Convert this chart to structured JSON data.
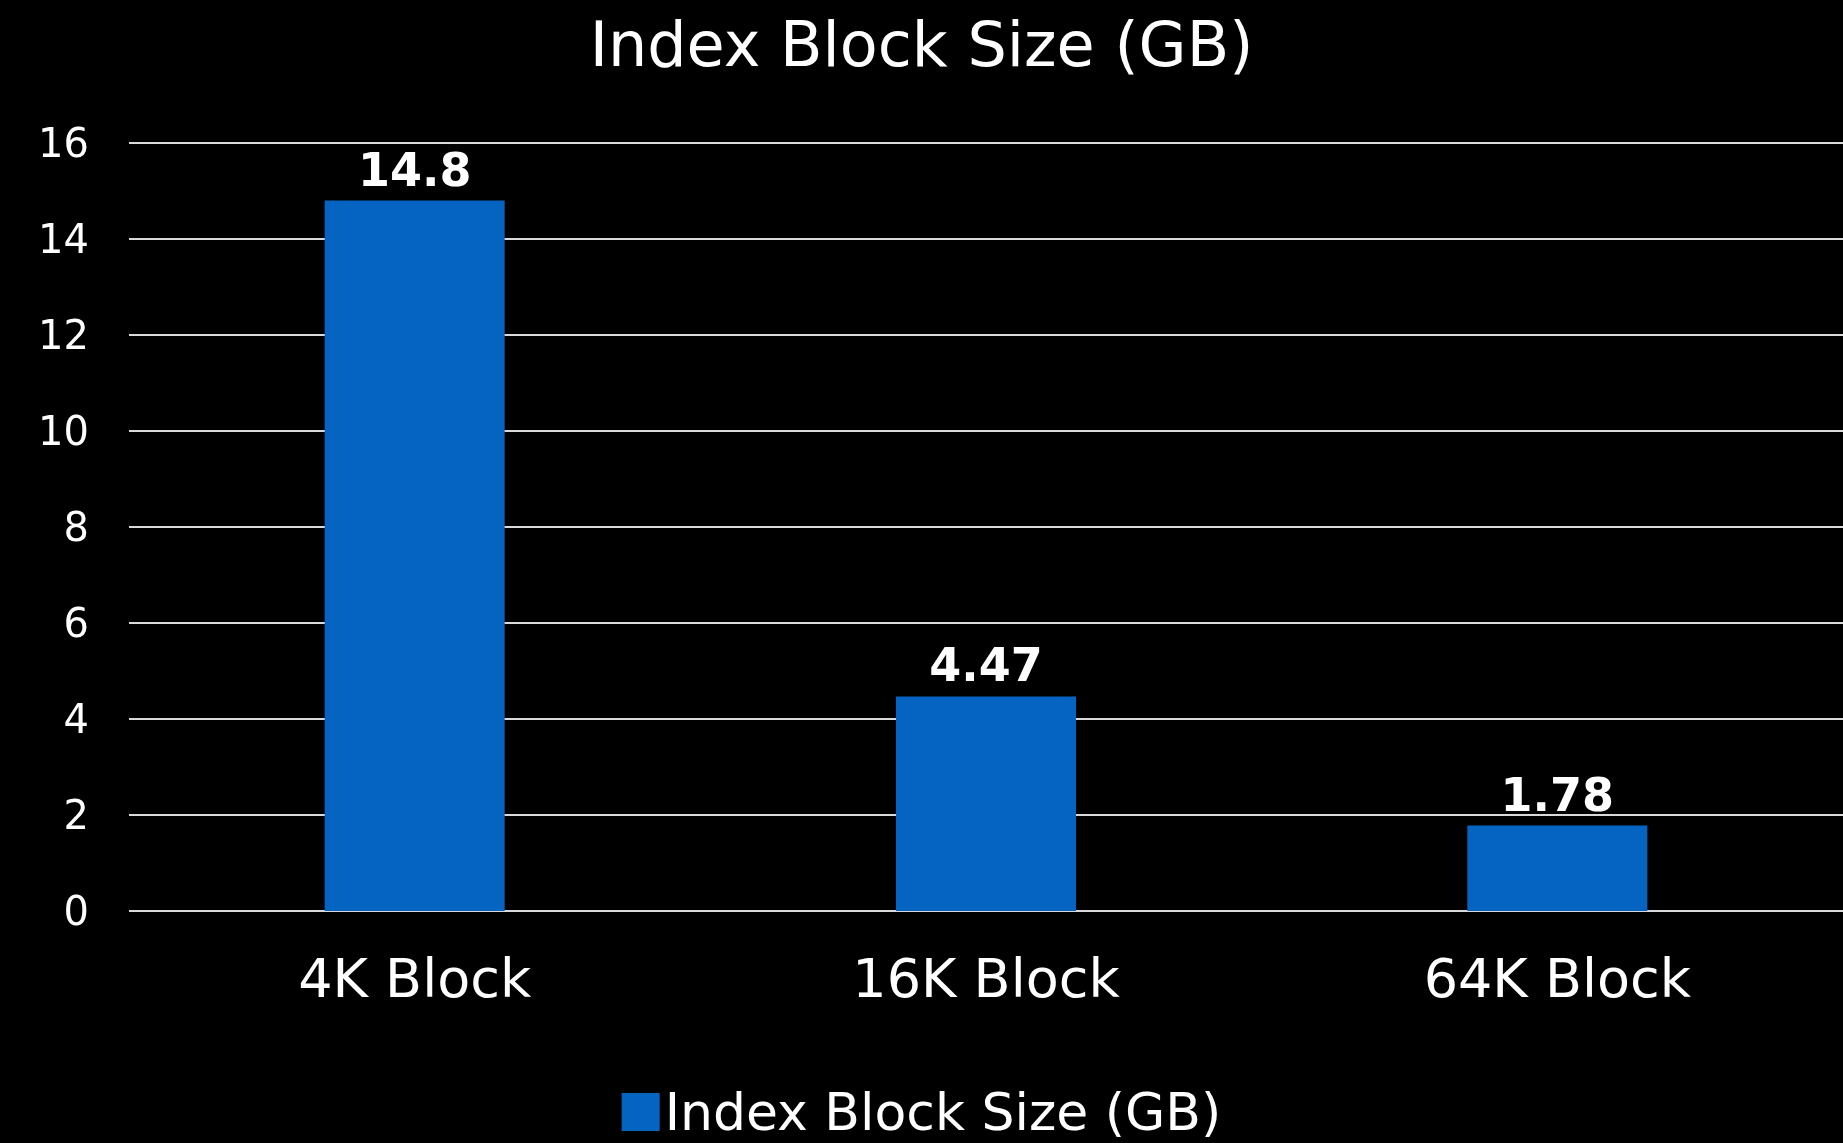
{
  "chart_data": {
    "type": "bar",
    "title": "Index Block Size (GB)",
    "categories": [
      "4K Block",
      "16K Block",
      "64K Block"
    ],
    "series": [
      {
        "name": "Index Block Size (GB)",
        "color": "#0563c1",
        "values": [
          14.8,
          4.47,
          1.78
        ]
      }
    ],
    "ylim": [
      0,
      16
    ],
    "yticks": [
      0,
      2,
      4,
      6,
      8,
      10,
      12,
      14,
      16
    ],
    "grid": "y",
    "legend": "bottom",
    "data_labels": true
  }
}
